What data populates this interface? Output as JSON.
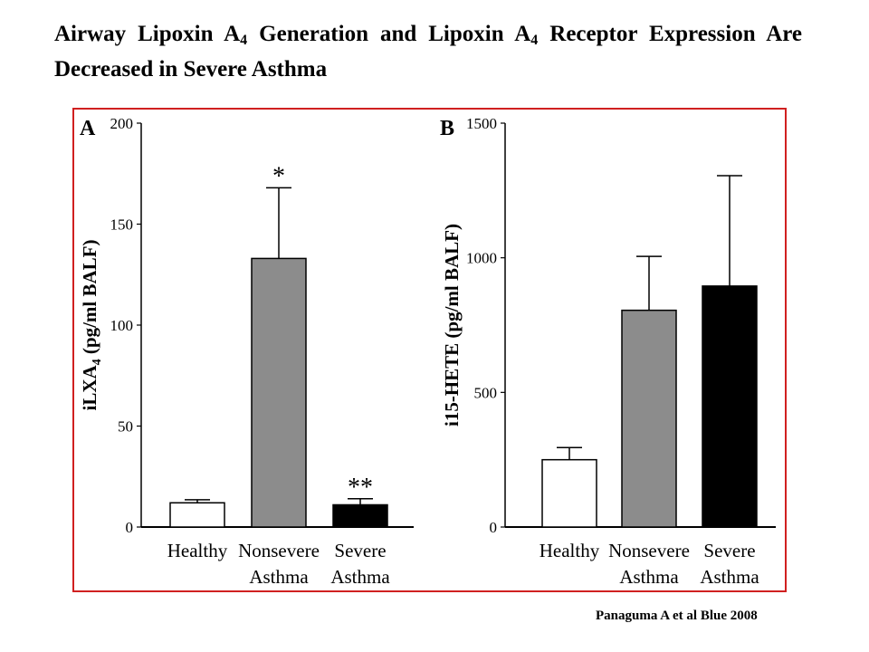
{
  "slide": {
    "title_part1": "Airway Lipoxin A",
    "title_sub1": "4",
    "title_part2": " Generation and Lipoxin A",
    "title_sub2": "4",
    "title_part3": " Receptor Expression Are Decreased in Severe Asthma",
    "citation": "Panaguma A et al Blue  2008"
  },
  "colors": {
    "frame": "#d02020",
    "healthy": "#ffffff",
    "nonsevere": "#8c8c8c",
    "severe": "#000000"
  },
  "chart_data": [
    {
      "type": "bar",
      "panel_label": "A",
      "ylabel_main": "iLXA",
      "ylabel_sub": "4",
      "ylabel_rest": " (pg/ml BALF)",
      "ylim": [
        0,
        200
      ],
      "yticks": [
        0,
        50,
        100,
        150,
        200
      ],
      "categories": [
        {
          "line1": "Healthy",
          "line2": ""
        },
        {
          "line1": "Nonsevere",
          "line2": "Asthma"
        },
        {
          "line1": "Severe",
          "line2": "Asthma"
        }
      ],
      "values": [
        12,
        133,
        11
      ],
      "errors": [
        1.5,
        35,
        3
      ],
      "annotations": [
        "",
        "*",
        "**"
      ],
      "fills": [
        "#ffffff",
        "#8c8c8c",
        "#000000"
      ]
    },
    {
      "type": "bar",
      "panel_label": "B",
      "ylabel_main": "i15-HETE (pg/ml BALF)",
      "ylabel_sub": "",
      "ylabel_rest": "",
      "ylim": [
        0,
        1500
      ],
      "yticks": [
        0,
        500,
        1000,
        1500
      ],
      "categories": [
        {
          "line1": "Healthy",
          "line2": ""
        },
        {
          "line1": "Nonsevere",
          "line2": "Asthma"
        },
        {
          "line1": "Severe",
          "line2": "Asthma"
        }
      ],
      "values": [
        250,
        805,
        895
      ],
      "errors": [
        45,
        200,
        410
      ],
      "annotations": [
        "",
        "",
        ""
      ],
      "fills": [
        "#ffffff",
        "#8c8c8c",
        "#000000"
      ]
    }
  ]
}
